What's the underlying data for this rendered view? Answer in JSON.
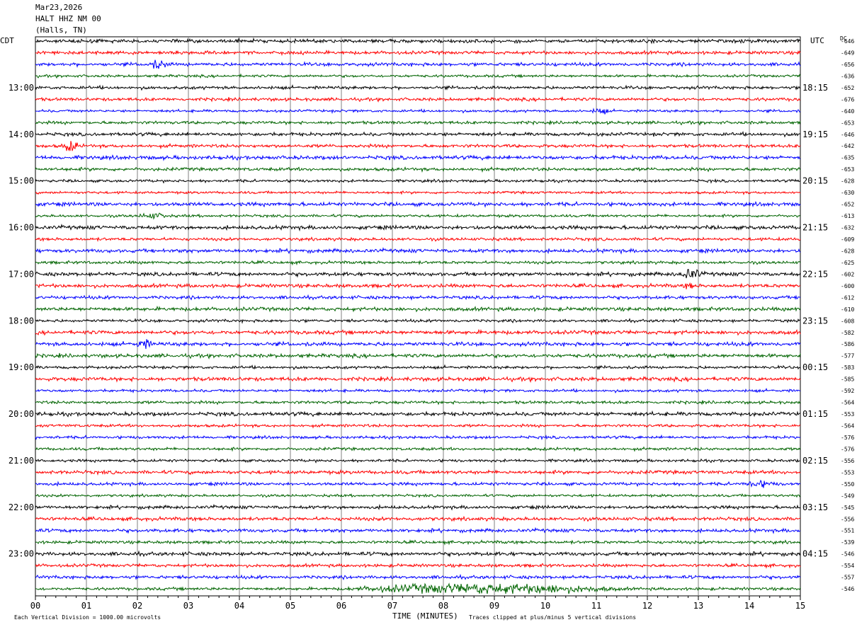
{
  "header": {
    "date": "Mar23,2026",
    "station": "HALT HHZ NM 00",
    "location": "(Halls, TN)"
  },
  "left_axis_title": "CDT",
  "right_axis_title": "UTC",
  "dc_title": "DC",
  "footer": {
    "scale_note": "Each Vertical Division = 1000.00 microvolts",
    "xlabel": "TIME (MINUTES)",
    "clip_note": "Traces clipped at plus/minus 5 vertical divisions"
  },
  "colors": {
    "trace_cycle": [
      "#000000",
      "#ff0000",
      "#0000ff",
      "#006400"
    ],
    "grid": "#808080"
  },
  "chart_data": {
    "type": "line",
    "title": "HALT HHZ NM 00",
    "xlabel": "TIME (MINUTES)",
    "xlim": [
      0,
      15
    ],
    "x_ticks": [
      "00",
      "01",
      "02",
      "03",
      "04",
      "05",
      "06",
      "07",
      "08",
      "09",
      "10",
      "11",
      "12",
      "13",
      "14",
      "15"
    ],
    "rows_per_hour": 4,
    "row_count": 48,
    "left_hour_labels": [
      "13:00",
      "14:00",
      "15:00",
      "16:00",
      "17:00",
      "18:00",
      "19:00",
      "20:00",
      "21:00",
      "22:00",
      "23:00"
    ],
    "right_hour_labels": [
      "18:15",
      "19:15",
      "20:15",
      "21:15",
      "22:15",
      "23:15",
      "00:15",
      "01:15",
      "02:15",
      "03:15",
      "04:15"
    ],
    "dc_offsets": [
      -646,
      -649,
      -656,
      -636,
      -652,
      -676,
      -640,
      -653,
      -646,
      -642,
      -635,
      -653,
      -628,
      -630,
      -652,
      -613,
      -632,
      -609,
      -628,
      -625,
      -602,
      -600,
      -612,
      -610,
      -608,
      -582,
      -586,
      -577,
      -583,
      -585,
      -592,
      -564,
      -553,
      -564,
      -576,
      -576,
      -556,
      -553,
      -550,
      -549,
      -545,
      -556,
      -551,
      -539,
      -546,
      -554,
      -557,
      -546
    ],
    "events": [
      {
        "row": 2,
        "minute_start": 2.2,
        "minute_end": 2.9,
        "amplitude": 3
      },
      {
        "row": 9,
        "minute_start": 0.5,
        "minute_end": 1.1,
        "amplitude": 5
      },
      {
        "row": 6,
        "minute_start": 10.9,
        "minute_end": 11.5,
        "amplitude": 2
      },
      {
        "row": 15,
        "minute_start": 2.0,
        "minute_end": 3.0,
        "amplitude": 2
      },
      {
        "row": 20,
        "minute_start": 12.6,
        "minute_end": 13.4,
        "amplitude": 4
      },
      {
        "row": 21,
        "minute_start": 12.7,
        "minute_end": 13.1,
        "amplitude": 2
      },
      {
        "row": 26,
        "minute_start": 1.9,
        "minute_end": 2.6,
        "amplitude": 3
      },
      {
        "row": 38,
        "minute_start": 13.8,
        "minute_end": 15.0,
        "amplitude": 2
      },
      {
        "row": 47,
        "minute_start": 6.0,
        "minute_end": 15.0,
        "amplitude": 4
      }
    ]
  }
}
